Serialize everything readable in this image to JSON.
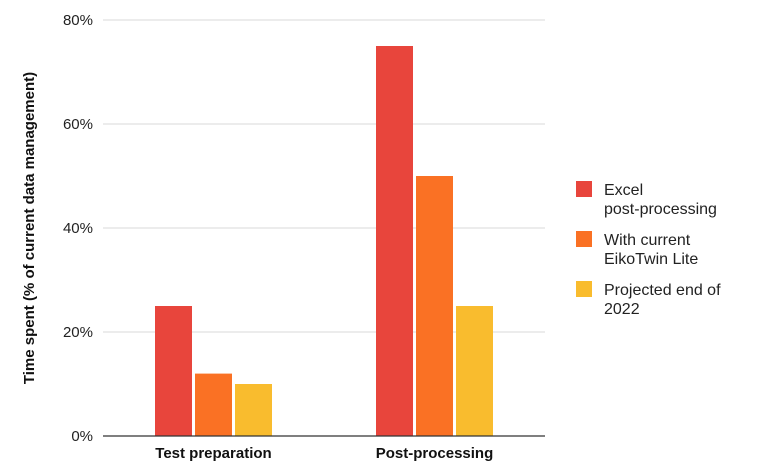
{
  "chart_data": {
    "type": "bar",
    "title": "",
    "xlabel": "",
    "ylabel": "Time spent (% of current data management)",
    "categories": [
      "Test preparation",
      "Post-processing"
    ],
    "series": [
      {
        "name": "Excel post-processing",
        "legend_lines": [
          "Excel",
          "post-processing"
        ],
        "color": "#E8453C",
        "values": [
          25,
          75
        ]
      },
      {
        "name": "With current EikoTwin Lite",
        "legend_lines": [
          "With current",
          "EikoTwin Lite"
        ],
        "color": "#FA7124",
        "values": [
          12,
          50
        ]
      },
      {
        "name": "Projected end of 2022",
        "legend_lines": [
          "Projected end of",
          "2022"
        ],
        "color": "#F9BC2E",
        "values": [
          10,
          25
        ]
      }
    ],
    "ylim": [
      0,
      80
    ],
    "yticks": [
      0,
      20,
      40,
      60,
      80
    ],
    "ytick_labels": [
      "0%",
      "20%",
      "40%",
      "60%",
      "80%"
    ],
    "grid": true,
    "legend_position": "right"
  }
}
